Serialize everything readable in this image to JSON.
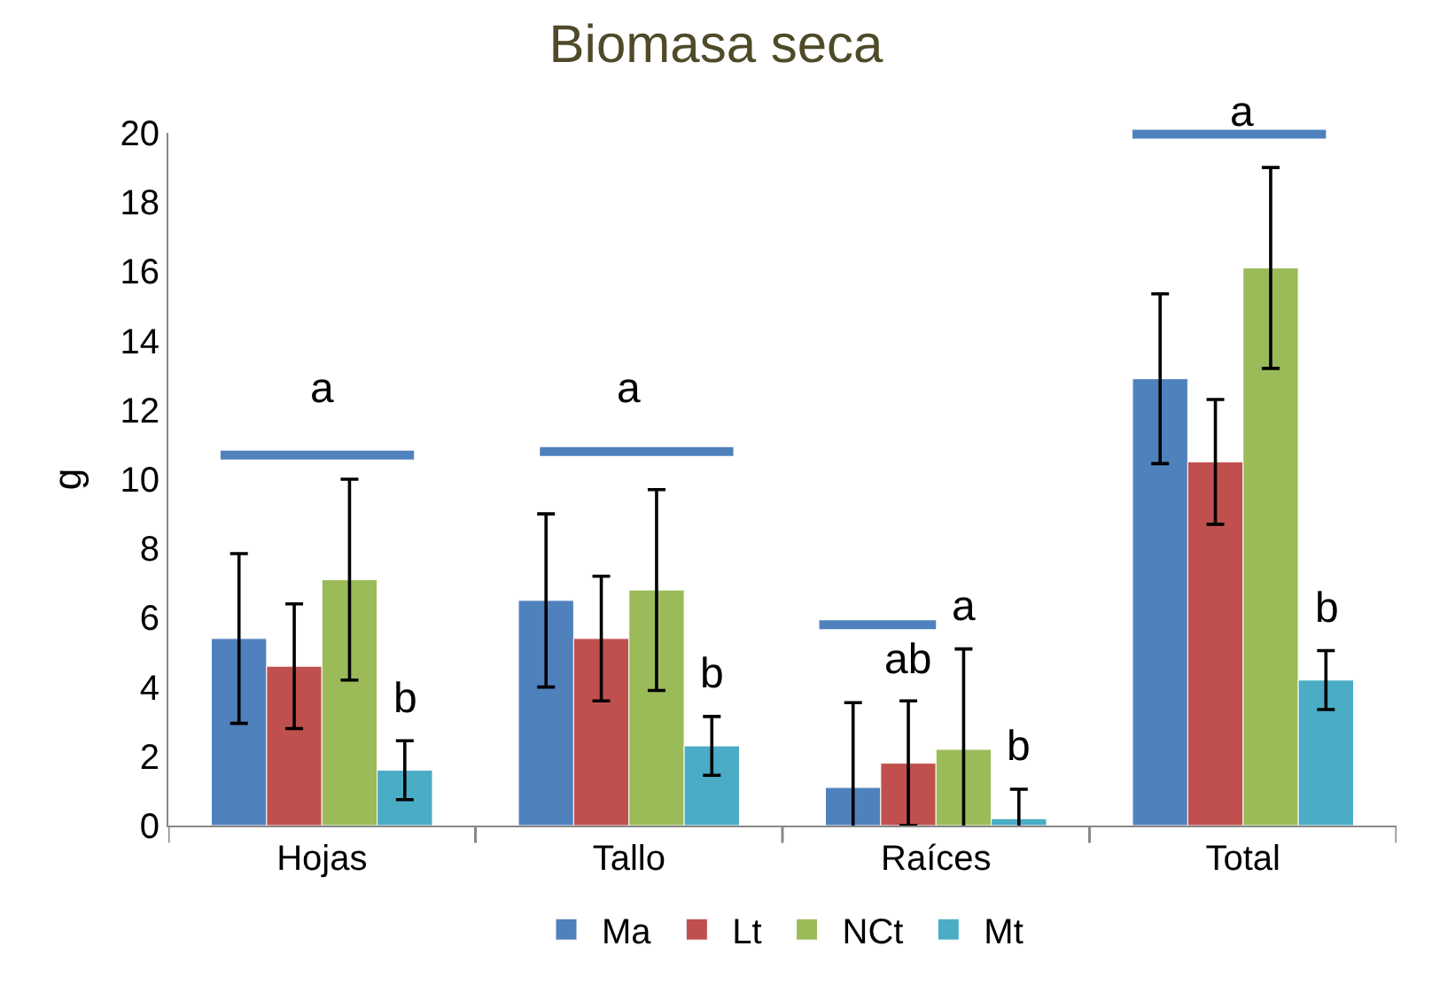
{
  "chart_data": {
    "type": "bar",
    "title": "Biomasa seca",
    "ylabel": "g",
    "categories": [
      "Hojas",
      "Tallo",
      "Raíces",
      "Total"
    ],
    "series": [
      {
        "name": "Ma",
        "color": "#4f81bd",
        "values": [
          5.4,
          6.5,
          1.1,
          12.9
        ],
        "errors": [
          2.45,
          2.5,
          2.45,
          2.45
        ]
      },
      {
        "name": "Lt",
        "color": "#c0504d",
        "values": [
          4.6,
          5.4,
          1.8,
          10.5
        ],
        "errors": [
          1.8,
          1.8,
          1.8,
          1.8
        ],
        "value_labels": [
          null,
          null,
          "ab",
          null
        ]
      },
      {
        "name": "NCt",
        "color": "#9bbb59",
        "values": [
          7.1,
          6.8,
          2.2,
          16.1
        ],
        "errors": [
          2.9,
          2.9,
          2.9,
          2.9
        ],
        "value_labels": [
          null,
          null,
          "a",
          null
        ]
      },
      {
        "name": "Mt",
        "color": "#4bacc6",
        "values": [
          1.6,
          2.3,
          0.2,
          4.2
        ],
        "errors": [
          0.85,
          0.85,
          0.85,
          0.85
        ],
        "value_labels": [
          "b",
          "b",
          "b",
          "b"
        ]
      }
    ],
    "annotations": [
      "a",
      "a",
      "a"
    ],
    "ylim": [
      0,
      20
    ],
    "yticks": [
      0,
      2,
      4,
      6,
      8,
      10,
      12,
      14,
      16,
      18,
      20
    ],
    "legend": "bottom"
  }
}
